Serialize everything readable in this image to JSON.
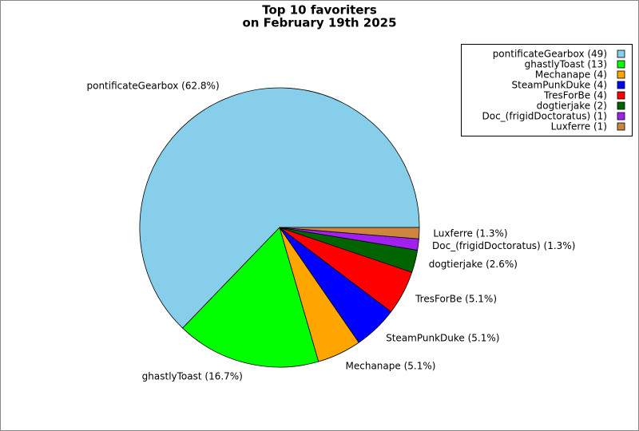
{
  "chart_data": {
    "type": "pie",
    "title": "Top 10 favoriters",
    "subtitle": "on February 19th 2025",
    "values": [
      62.8,
      16.7,
      5.1,
      5.1,
      5.1,
      2.6,
      1.3,
      1.3
    ],
    "value_labels": [
      "pontificateGearbox (62.8%)",
      "ghastlyToast (16.7%)",
      "Mechanape (5.1%)",
      "SteamPunkDuke (5.1%)",
      "TresForBe (5.1%)",
      "dogtierjake (2.6%)",
      "Doc_(frigidDoctoratus) (1.3%)",
      "Luxferre (1.3%)"
    ],
    "legend": [
      "pontificateGearbox (49)",
      "ghastlyToast (13)",
      "Mechanape (4)",
      "SteamPunkDuke (4)",
      "TresForBe (4)",
      "dogtierjake (2)",
      "Doc_(frigidDoctoratus) (1)",
      "Luxferre (1)"
    ],
    "colors": [
      "#87ceeb",
      "#00ff00",
      "#ffa500",
      "#0000ff",
      "#ff0000",
      "#006400",
      "#a020f0",
      "#cd853f"
    ],
    "legend_position": "upper right"
  }
}
